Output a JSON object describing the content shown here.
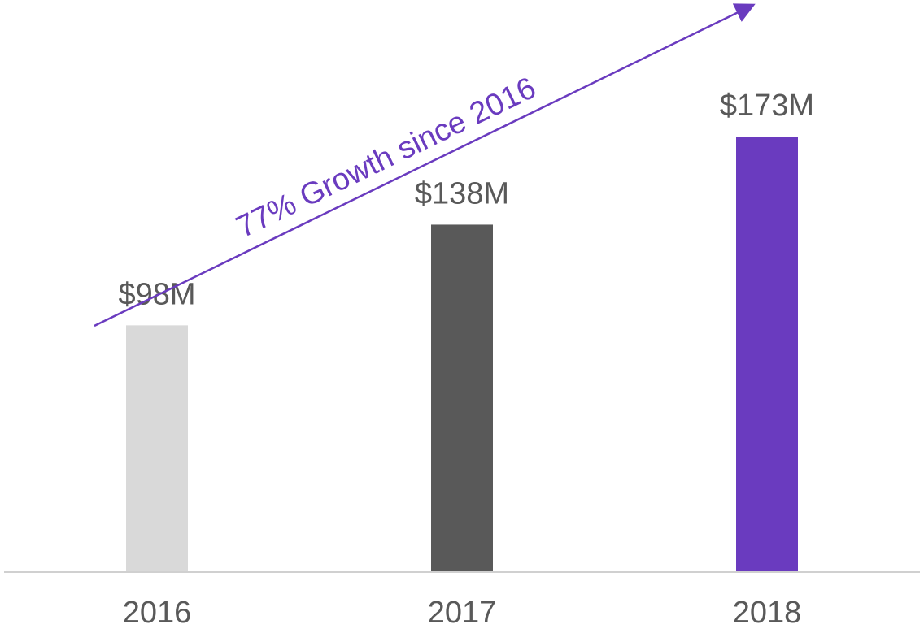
{
  "chart_data": {
    "type": "bar",
    "categories": [
      "2016",
      "2017",
      "2018"
    ],
    "values": [
      98,
      138,
      173
    ],
    "value_labels": [
      "$98M",
      "$138M",
      "$173M"
    ],
    "bar_colors": [
      "#d9d9d9",
      "#595959",
      "#6a3bbf"
    ],
    "ylim": [
      0,
      200
    ],
    "title": "",
    "xlabel": "",
    "ylabel": "",
    "grid": false,
    "annotation": {
      "text": "77% Growth since 2016",
      "color": "#6a3bbf"
    },
    "colors": {
      "axis": "#d0d0d0",
      "label": "#595959"
    }
  }
}
